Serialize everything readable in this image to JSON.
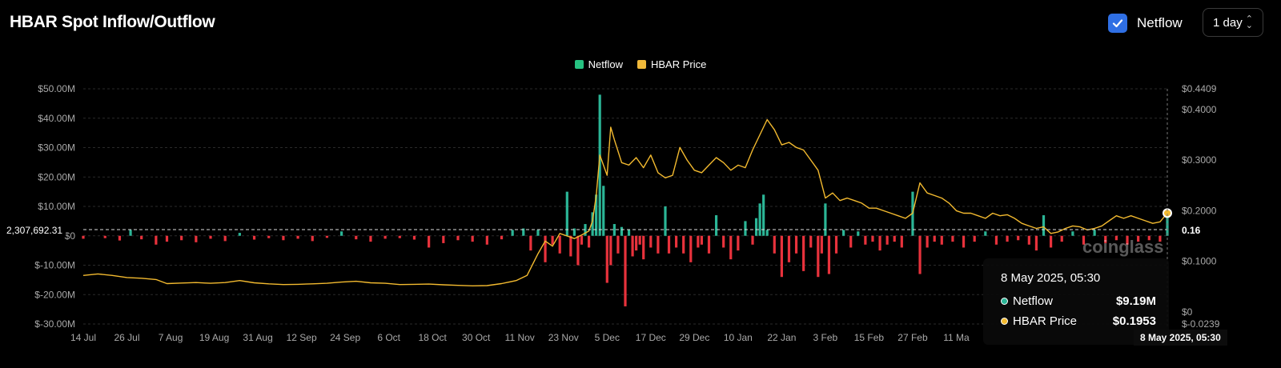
{
  "header": {
    "title": "HBAR Spot Inflow/Outflow",
    "netflow_checkbox_label": "Netflow",
    "netflow_checked": true,
    "period_value": "1 day"
  },
  "colors": {
    "background": "#000000",
    "netflow_positive": "#2bb596",
    "netflow_negative": "#e8323c",
    "price_line": "#f3ba2f",
    "checkbox": "#2f6fe4"
  },
  "legend": [
    {
      "label": "Netflow",
      "color": "#26c281"
    },
    {
      "label": "HBAR Price",
      "color": "#f0b93a"
    }
  ],
  "tooltip": {
    "date": "8 May 2025, 05:30",
    "rows": [
      {
        "label": "Netflow",
        "value": "$9.19M",
        "dot_color": "#2bb596"
      },
      {
        "label": "HBAR Price",
        "value": "$0.1953",
        "dot_color": "#f3ba2f"
      }
    ]
  },
  "crosshair": {
    "left_value": "2,307,692.31",
    "right_value": "0.16",
    "x_label": "8 May 2025, 05:30"
  },
  "watermark": "coinglass",
  "chart_data": {
    "type": "bar+line",
    "left_axis": {
      "ticks": [
        "$50.00M",
        "$40.00M",
        "$30.00M",
        "$20.00M",
        "$10.00M",
        "$0",
        "$-10.00M",
        "$-20.00M",
        "$-30.00M"
      ],
      "ylim": [
        -30,
        50
      ],
      "unit": "million USD"
    },
    "right_axis": {
      "ticks": [
        "$0.4409",
        "$0.4000",
        "$0.3000",
        "$0.2000",
        "$0.1000",
        "$0",
        "$-0.0239"
      ],
      "tick_values": [
        0.4409,
        0.4,
        0.3,
        0.2,
        0.1,
        0.0,
        -0.0239
      ],
      "ylim": [
        -0.0239,
        0.4409
      ]
    },
    "x_ticks": [
      "14 Jul",
      "26 Jul",
      "7 Aug",
      "19 Aug",
      "31 Aug",
      "12 Sep",
      "24 Sep",
      "6 Oct",
      "18 Oct",
      "30 Oct",
      "11 Nov",
      "23 Nov",
      "5 Dec",
      "17 Dec",
      "29 Dec",
      "10 Jan",
      "22 Jan",
      "3 Feb",
      "15 Feb",
      "27 Feb",
      "11 Ma"
    ],
    "x_range": [
      "2024-07-14",
      "2025-05-08"
    ],
    "series": [
      {
        "name": "Netflow",
        "kind": "bar",
        "unit": "million USD",
        "points": [
          [
            "2024-07-14",
            -1.0
          ],
          [
            "2024-07-20",
            -0.8
          ],
          [
            "2024-07-24",
            -1.6
          ],
          [
            "2024-07-27",
            2.0
          ],
          [
            "2024-07-30",
            -1.2
          ],
          [
            "2024-08-03",
            -3.0
          ],
          [
            "2024-08-06",
            -2.0
          ],
          [
            "2024-08-10",
            -1.5
          ],
          [
            "2024-08-14",
            -2.2
          ],
          [
            "2024-08-18",
            -1.0
          ],
          [
            "2024-08-22",
            -1.8
          ],
          [
            "2024-08-26",
            1.0
          ],
          [
            "2024-08-30",
            -1.3
          ],
          [
            "2024-09-03",
            -0.8
          ],
          [
            "2024-09-07",
            -1.5
          ],
          [
            "2024-09-11",
            -1.0
          ],
          [
            "2024-09-15",
            -1.8
          ],
          [
            "2024-09-19",
            -0.7
          ],
          [
            "2024-09-23",
            1.5
          ],
          [
            "2024-09-27",
            -1.2
          ],
          [
            "2024-10-01",
            -2.0
          ],
          [
            "2024-10-05",
            -1.0
          ],
          [
            "2024-10-09",
            -0.8
          ],
          [
            "2024-10-13",
            -1.3
          ],
          [
            "2024-10-17",
            -4.0
          ],
          [
            "2024-10-21",
            -2.5
          ],
          [
            "2024-10-25",
            -1.5
          ],
          [
            "2024-10-29",
            -2.0
          ],
          [
            "2024-11-02",
            -3.0
          ],
          [
            "2024-11-06",
            -1.2
          ],
          [
            "2024-11-09",
            2.0
          ],
          [
            "2024-11-12",
            2.5
          ],
          [
            "2024-11-14",
            -5.0
          ],
          [
            "2024-11-16",
            2.0
          ],
          [
            "2024-11-18",
            -9.0
          ],
          [
            "2024-11-20",
            -3.0
          ],
          [
            "2024-11-22",
            -6.0
          ],
          [
            "2024-11-24",
            15.0
          ],
          [
            "2024-11-25",
            -7.0
          ],
          [
            "2024-11-26",
            2.5
          ],
          [
            "2024-11-27",
            -10.0
          ],
          [
            "2024-11-28",
            -3.0
          ],
          [
            "2024-11-29",
            4.0
          ],
          [
            "2024-11-30",
            -4.0
          ],
          [
            "2024-12-01",
            8.0
          ],
          [
            "2024-12-02",
            14.0
          ],
          [
            "2024-12-03",
            48.0
          ],
          [
            "2024-12-04",
            17.0
          ],
          [
            "2024-12-05",
            -16.0
          ],
          [
            "2024-12-06",
            -10.0
          ],
          [
            "2024-12-07",
            4.0
          ],
          [
            "2024-12-08",
            -6.0
          ],
          [
            "2024-12-09",
            3.0
          ],
          [
            "2024-12-10",
            -24.0
          ],
          [
            "2024-12-11",
            2.0
          ],
          [
            "2024-12-12",
            -7.0
          ],
          [
            "2024-12-13",
            -5.0
          ],
          [
            "2024-12-14",
            -3.0
          ],
          [
            "2024-12-15",
            -8.0
          ],
          [
            "2024-12-17",
            -4.0
          ],
          [
            "2024-12-19",
            -6.0
          ],
          [
            "2024-12-21",
            10.0
          ],
          [
            "2024-12-22",
            -6.0
          ],
          [
            "2024-12-24",
            -4.0
          ],
          [
            "2024-12-26",
            -6.0
          ],
          [
            "2024-12-28",
            -9.0
          ],
          [
            "2024-12-30",
            -4.0
          ],
          [
            "2024-12-31",
            -3.0
          ],
          [
            "2025-01-02",
            -6.0
          ],
          [
            "2025-01-04",
            7.0
          ],
          [
            "2025-01-06",
            -4.0
          ],
          [
            "2025-01-08",
            -8.0
          ],
          [
            "2025-01-10",
            -5.0
          ],
          [
            "2025-01-12",
            5.0
          ],
          [
            "2025-01-14",
            -3.0
          ],
          [
            "2025-01-15",
            6.0
          ],
          [
            "2025-01-16",
            11.0
          ],
          [
            "2025-01-17",
            14.0
          ],
          [
            "2025-01-18",
            2.0
          ],
          [
            "2025-01-20",
            -6.0
          ],
          [
            "2025-01-22",
            -14.0
          ],
          [
            "2025-01-24",
            -9.0
          ],
          [
            "2025-01-26",
            -6.0
          ],
          [
            "2025-01-28",
            -12.0
          ],
          [
            "2025-01-30",
            -4.0
          ],
          [
            "2025-02-01",
            -14.0
          ],
          [
            "2025-02-02",
            -6.0
          ],
          [
            "2025-02-03",
            11.0
          ],
          [
            "2025-02-04",
            -13.0
          ],
          [
            "2025-02-06",
            -6.0
          ],
          [
            "2025-02-08",
            2.0
          ],
          [
            "2025-02-10",
            -4.0
          ],
          [
            "2025-02-12",
            1.5
          ],
          [
            "2025-02-14",
            -3.0
          ],
          [
            "2025-02-16",
            -2.0
          ],
          [
            "2025-02-18",
            -5.0
          ],
          [
            "2025-02-20",
            -3.0
          ],
          [
            "2025-02-22",
            -2.0
          ],
          [
            "2025-02-24",
            -4.0
          ],
          [
            "2025-02-27",
            15.0
          ],
          [
            "2025-03-01",
            -13.0
          ],
          [
            "2025-03-03",
            -4.0
          ],
          [
            "2025-03-05",
            -2.0
          ],
          [
            "2025-03-07",
            -3.0
          ],
          [
            "2025-03-10",
            -2.0
          ],
          [
            "2025-03-13",
            -4.0
          ],
          [
            "2025-03-16",
            -2.0
          ],
          [
            "2025-03-19",
            1.5
          ],
          [
            "2025-03-22",
            -3.0
          ],
          [
            "2025-03-25",
            -2.0
          ],
          [
            "2025-03-28",
            -1.5
          ],
          [
            "2025-03-31",
            -3.0
          ],
          [
            "2025-04-02",
            -5.0
          ],
          [
            "2025-04-04",
            7.0
          ],
          [
            "2025-04-06",
            -4.0
          ],
          [
            "2025-04-09",
            -2.0
          ],
          [
            "2025-04-12",
            1.5
          ],
          [
            "2025-04-15",
            -3.0
          ],
          [
            "2025-04-18",
            2.0
          ],
          [
            "2025-04-21",
            -2.5
          ],
          [
            "2025-04-24",
            -1.5
          ],
          [
            "2025-04-27",
            -3.0
          ],
          [
            "2025-04-30",
            -2.0
          ],
          [
            "2025-05-03",
            -1.5
          ],
          [
            "2025-05-06",
            -2.0
          ],
          [
            "2025-05-08",
            9.19
          ]
        ]
      },
      {
        "name": "HBAR Price",
        "kind": "line",
        "unit": "USD",
        "points": [
          [
            "2024-07-14",
            0.072
          ],
          [
            "2024-07-18",
            0.075
          ],
          [
            "2024-07-22",
            0.072
          ],
          [
            "2024-07-26",
            0.068
          ],
          [
            "2024-07-30",
            0.0665
          ],
          [
            "2024-08-03",
            0.064
          ],
          [
            "2024-08-06",
            0.056
          ],
          [
            "2024-08-10",
            0.057
          ],
          [
            "2024-08-14",
            0.058
          ],
          [
            "2024-08-18",
            0.0565
          ],
          [
            "2024-08-22",
            0.058
          ],
          [
            "2024-08-26",
            0.062
          ],
          [
            "2024-08-30",
            0.0575
          ],
          [
            "2024-09-03",
            0.0555
          ],
          [
            "2024-09-07",
            0.054
          ],
          [
            "2024-09-11",
            0.0545
          ],
          [
            "2024-09-15",
            0.0555
          ],
          [
            "2024-09-19",
            0.0565
          ],
          [
            "2024-09-23",
            0.059
          ],
          [
            "2024-09-27",
            0.0605
          ],
          [
            "2024-10-01",
            0.0575
          ],
          [
            "2024-10-05",
            0.0565
          ],
          [
            "2024-10-09",
            0.054
          ],
          [
            "2024-10-13",
            0.0545
          ],
          [
            "2024-10-17",
            0.055
          ],
          [
            "2024-10-21",
            0.0535
          ],
          [
            "2024-10-25",
            0.0525
          ],
          [
            "2024-10-29",
            0.0515
          ],
          [
            "2024-11-02",
            0.052
          ],
          [
            "2024-11-06",
            0.056
          ],
          [
            "2024-11-10",
            0.062
          ],
          [
            "2024-11-13",
            0.072
          ],
          [
            "2024-11-16",
            0.115
          ],
          [
            "2024-11-18",
            0.14
          ],
          [
            "2024-11-20",
            0.13
          ],
          [
            "2024-11-22",
            0.155
          ],
          [
            "2024-11-24",
            0.15
          ],
          [
            "2024-11-26",
            0.145
          ],
          [
            "2024-11-28",
            0.152
          ],
          [
            "2024-11-30",
            0.16
          ],
          [
            "2024-12-01",
            0.18
          ],
          [
            "2024-12-02",
            0.23
          ],
          [
            "2024-12-03",
            0.31
          ],
          [
            "2024-12-04",
            0.29
          ],
          [
            "2024-12-05",
            0.27
          ],
          [
            "2024-12-06",
            0.365
          ],
          [
            "2024-12-07",
            0.34
          ],
          [
            "2024-12-09",
            0.295
          ],
          [
            "2024-12-11",
            0.29
          ],
          [
            "2024-12-13",
            0.305
          ],
          [
            "2024-12-15",
            0.285
          ],
          [
            "2024-12-17",
            0.31
          ],
          [
            "2024-12-19",
            0.275
          ],
          [
            "2024-12-21",
            0.265
          ],
          [
            "2024-12-23",
            0.27
          ],
          [
            "2024-12-25",
            0.325
          ],
          [
            "2024-12-27",
            0.3
          ],
          [
            "2024-12-29",
            0.28
          ],
          [
            "2024-12-31",
            0.275
          ],
          [
            "2025-01-02",
            0.29
          ],
          [
            "2025-01-04",
            0.305
          ],
          [
            "2025-01-06",
            0.295
          ],
          [
            "2025-01-08",
            0.28
          ],
          [
            "2025-01-10",
            0.29
          ],
          [
            "2025-01-12",
            0.285
          ],
          [
            "2025-01-14",
            0.32
          ],
          [
            "2025-01-16",
            0.35
          ],
          [
            "2025-01-18",
            0.38
          ],
          [
            "2025-01-20",
            0.36
          ],
          [
            "2025-01-22",
            0.33
          ],
          [
            "2025-01-24",
            0.335
          ],
          [
            "2025-01-26",
            0.325
          ],
          [
            "2025-01-28",
            0.32
          ],
          [
            "2025-01-30",
            0.3
          ],
          [
            "2025-02-01",
            0.28
          ],
          [
            "2025-02-03",
            0.225
          ],
          [
            "2025-02-05",
            0.235
          ],
          [
            "2025-02-07",
            0.22
          ],
          [
            "2025-02-09",
            0.225
          ],
          [
            "2025-02-11",
            0.22
          ],
          [
            "2025-02-13",
            0.215
          ],
          [
            "2025-02-15",
            0.205
          ],
          [
            "2025-02-17",
            0.205
          ],
          [
            "2025-02-19",
            0.2
          ],
          [
            "2025-02-21",
            0.195
          ],
          [
            "2025-02-23",
            0.19
          ],
          [
            "2025-02-25",
            0.185
          ],
          [
            "2025-02-27",
            0.195
          ],
          [
            "2025-03-01",
            0.255
          ],
          [
            "2025-03-03",
            0.235
          ],
          [
            "2025-03-05",
            0.23
          ],
          [
            "2025-03-07",
            0.225
          ],
          [
            "2025-03-09",
            0.215
          ],
          [
            "2025-03-11",
            0.2
          ],
          [
            "2025-03-13",
            0.195
          ],
          [
            "2025-03-15",
            0.195
          ],
          [
            "2025-03-17",
            0.19
          ],
          [
            "2025-03-19",
            0.185
          ],
          [
            "2025-03-21",
            0.195
          ],
          [
            "2025-03-23",
            0.19
          ],
          [
            "2025-03-25",
            0.192
          ],
          [
            "2025-03-27",
            0.185
          ],
          [
            "2025-03-29",
            0.175
          ],
          [
            "2025-03-31",
            0.17
          ],
          [
            "2025-04-02",
            0.165
          ],
          [
            "2025-04-04",
            0.168
          ],
          [
            "2025-04-06",
            0.155
          ],
          [
            "2025-04-08",
            0.158
          ],
          [
            "2025-04-10",
            0.165
          ],
          [
            "2025-04-12",
            0.17
          ],
          [
            "2025-04-14",
            0.168
          ],
          [
            "2025-04-16",
            0.162
          ],
          [
            "2025-04-18",
            0.165
          ],
          [
            "2025-04-20",
            0.17
          ],
          [
            "2025-04-22",
            0.18
          ],
          [
            "2025-04-24",
            0.19
          ],
          [
            "2025-04-26",
            0.185
          ],
          [
            "2025-04-28",
            0.19
          ],
          [
            "2025-04-30",
            0.185
          ],
          [
            "2025-05-02",
            0.18
          ],
          [
            "2025-05-04",
            0.175
          ],
          [
            "2025-05-06",
            0.178
          ],
          [
            "2025-05-08",
            0.1953
          ]
        ]
      }
    ],
    "grid": true,
    "legend_position": "top-center"
  }
}
